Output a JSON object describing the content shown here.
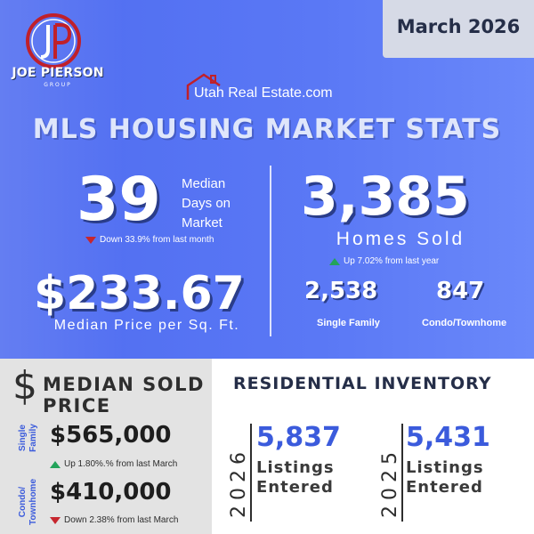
{
  "brand": {
    "name": "JOE PIERSON",
    "group": "GROUP",
    "monogram": "JP"
  },
  "date": "March 2026",
  "source": "Utah Real Estate.com",
  "headline": "MLS HOUSING MARKET STATS",
  "days_on_market": {
    "value": "39",
    "label_lines": [
      "Median",
      "Days on",
      "Market"
    ],
    "change": "Down 33.9% from last month",
    "direction": "down"
  },
  "price_per_sqft": {
    "value": "$233.67",
    "label": "Median Price per Sq. Ft."
  },
  "homes_sold": {
    "value": "3,385",
    "label": "Homes Sold",
    "change": "Up 7.02% from last year",
    "direction": "up",
    "single_family": {
      "value": "2,538",
      "label": "Single Family"
    },
    "condo": {
      "value": "847",
      "label": "Condo/Townhome"
    }
  },
  "median_sold_price": {
    "symbol": "$",
    "title_lines": [
      "MEDIAN SOLD",
      "PRICE"
    ],
    "single_family": {
      "category_lines": [
        "Single",
        "Family"
      ],
      "value": "$565,000",
      "change": "Up 1.80%.% from last March",
      "direction": "up"
    },
    "condo": {
      "category_lines": [
        "Condo/",
        "Townhome"
      ],
      "value": "$410,000",
      "change": "Down 2.38% from last March",
      "direction": "down"
    }
  },
  "residential_inventory": {
    "title": "RESIDENTIAL INVENTORY",
    "years": [
      {
        "year": "2026",
        "value": "5,837",
        "label_lines": [
          "Listings",
          "Entered"
        ]
      },
      {
        "year": "2025",
        "value": "5,431",
        "label_lines": [
          "Listings",
          "Entered"
        ]
      }
    ]
  },
  "colors": {
    "top_blue": "#5a78f5",
    "accent_blue": "#3b5bdc",
    "down_red": "#c6262e",
    "up_green": "#23a35a",
    "logo_red": "#c0202a"
  }
}
